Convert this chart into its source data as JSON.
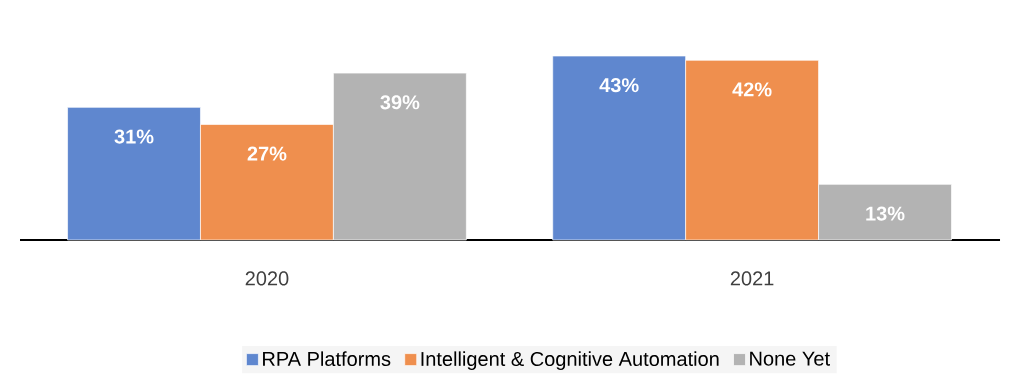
{
  "chart_data": {
    "type": "bar",
    "categories": [
      "2020",
      "2021"
    ],
    "series": [
      {
        "name": "RPA Platforms",
        "color": "#5f87cf",
        "values": [
          31,
          43
        ],
        "value_labels": [
          "31%",
          "43%"
        ]
      },
      {
        "name": "Intelligent & Cognitive Automation",
        "color": "#ef8f4e",
        "values": [
          27,
          42
        ],
        "value_labels": [
          "27%",
          "42%"
        ]
      },
      {
        "name": "None Yet",
        "color": "#b3b3b3",
        "values": [
          39,
          13
        ],
        "value_labels": [
          "39%",
          "13%"
        ]
      }
    ],
    "legend": "bottom"
  }
}
